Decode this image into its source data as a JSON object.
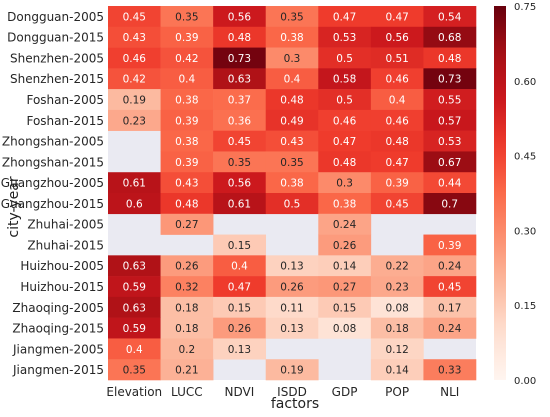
{
  "chart_data": {
    "type": "heatmap",
    "xlabel": "factors",
    "ylabel": "city-year",
    "x": [
      "Elevation",
      "LUCC",
      "NDVI",
      "ISDD",
      "GDP",
      "POP",
      "NLI"
    ],
    "y": [
      "Dongguan-2005",
      "Dongguan-2015",
      "Shenzhen-2005",
      "Shenzhen-2015",
      "Foshan-2005",
      "Foshan-2015",
      "Zhongshan-2005",
      "Zhongshan-2015",
      "Guangzhou-2005",
      "Guangzhou-2015",
      "Zhuhai-2005",
      "Zhuhai-2015",
      "Huizhou-2005",
      "Huizhou-2015",
      "Zhaoqing-2005",
      "Zhaoqing-2015",
      "Jiangmen-2005",
      "Jiangmen-2015"
    ],
    "values": [
      [
        0.45,
        0.35,
        0.56,
        0.35,
        0.47,
        0.47,
        0.54
      ],
      [
        0.43,
        0.39,
        0.48,
        0.38,
        0.53,
        0.56,
        0.68
      ],
      [
        0.46,
        0.42,
        0.73,
        0.3,
        0.5,
        0.51,
        0.48
      ],
      [
        0.42,
        0.4,
        0.63,
        0.4,
        0.58,
        0.46,
        0.73
      ],
      [
        0.19,
        0.38,
        0.37,
        0.48,
        0.5,
        0.4,
        0.55
      ],
      [
        0.23,
        0.39,
        0.36,
        0.49,
        0.46,
        0.46,
        0.57
      ],
      [
        null,
        0.38,
        0.45,
        0.43,
        0.47,
        0.48,
        0.53
      ],
      [
        null,
        0.39,
        0.35,
        0.35,
        0.48,
        0.47,
        0.67
      ],
      [
        0.61,
        0.43,
        0.56,
        0.38,
        0.3,
        0.39,
        0.44
      ],
      [
        0.6,
        0.48,
        0.61,
        0.5,
        0.38,
        0.45,
        0.7
      ],
      [
        null,
        0.27,
        null,
        null,
        0.24,
        null,
        null
      ],
      [
        null,
        null,
        0.15,
        null,
        0.26,
        null,
        0.39
      ],
      [
        0.63,
        0.26,
        0.4,
        0.13,
        0.14,
        0.22,
        0.24
      ],
      [
        0.59,
        0.32,
        0.47,
        0.26,
        0.27,
        0.23,
        0.45
      ],
      [
        0.63,
        0.18,
        0.15,
        0.11,
        0.15,
        0.08,
        0.17
      ],
      [
        0.59,
        0.18,
        0.26,
        0.13,
        0.08,
        0.18,
        0.24
      ],
      [
        0.4,
        0.2,
        0.13,
        null,
        null,
        0.12,
        null
      ],
      [
        0.35,
        0.21,
        null,
        0.19,
        null,
        0.14,
        0.33
      ]
    ],
    "value_labels": [
      [
        "0.45",
        "0.35",
        "0.56",
        "0.35",
        "0.47",
        "0.47",
        "0.54"
      ],
      [
        "0.43",
        "0.39",
        "0.48",
        "0.38",
        "0.53",
        "0.56",
        "0.68"
      ],
      [
        "0.46",
        "0.42",
        "0.73",
        "0.3",
        "0.5",
        "0.51",
        "0.48"
      ],
      [
        "0.42",
        "0.4",
        "0.63",
        "0.4",
        "0.58",
        "0.46",
        "0.73"
      ],
      [
        "0.19",
        "0.38",
        "0.37",
        "0.48",
        "0.5",
        "0.4",
        "0.55"
      ],
      [
        "0.23",
        "0.39",
        "0.36",
        "0.49",
        "0.46",
        "0.46",
        "0.57"
      ],
      [
        "",
        "0.38",
        "0.45",
        "0.43",
        "0.47",
        "0.48",
        "0.53"
      ],
      [
        "",
        "0.39",
        "0.35",
        "0.35",
        "0.48",
        "0.47",
        "0.67"
      ],
      [
        "0.61",
        "0.43",
        "0.56",
        "0.38",
        "0.3",
        "0.39",
        "0.44"
      ],
      [
        "0.6",
        "0.48",
        "0.61",
        "0.5",
        "0.38",
        "0.45",
        "0.7"
      ],
      [
        "",
        "0.27",
        "",
        "",
        "0.24",
        "",
        ""
      ],
      [
        "",
        "",
        "0.15",
        "",
        "0.26",
        "",
        "0.39"
      ],
      [
        "0.63",
        "0.26",
        "0.4",
        "0.13",
        "0.14",
        "0.22",
        "0.24"
      ],
      [
        "0.59",
        "0.32",
        "0.47",
        "0.26",
        "0.27",
        "0.23",
        "0.45"
      ],
      [
        "0.63",
        "0.18",
        "0.15",
        "0.11",
        "0.15",
        "0.08",
        "0.17"
      ],
      [
        "0.59",
        "0.18",
        "0.26",
        "0.13",
        "0.08",
        "0.18",
        "0.24"
      ],
      [
        "0.4",
        "0.2",
        "0.13",
        "",
        "",
        "0.12",
        ""
      ],
      [
        "0.35",
        "0.21",
        "",
        "0.19",
        "",
        "0.14",
        "0.33"
      ]
    ],
    "colorscale": "Reds",
    "missing_color": "#eaeaf2",
    "vmin": 0.0,
    "vmax": 0.75,
    "colorbar_ticks": [
      "0.00",
      "0.15",
      "0.30",
      "0.45",
      "0.60",
      "0.75"
    ],
    "legend_position": "right",
    "grid": false
  }
}
